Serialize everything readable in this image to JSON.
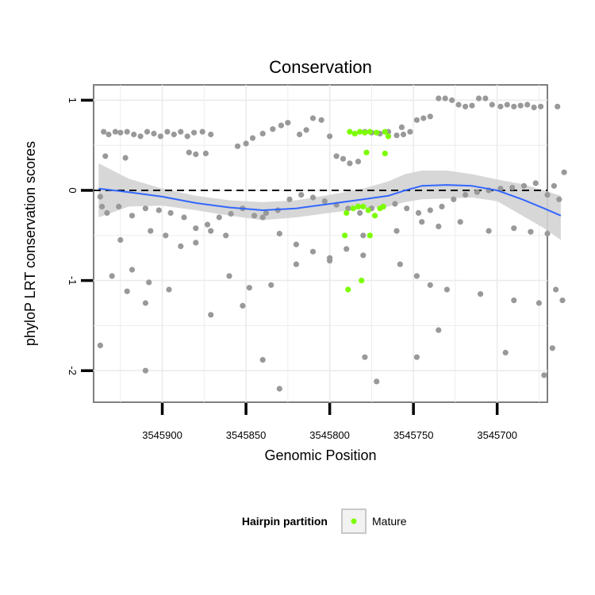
{
  "chart_data": {
    "type": "scatter",
    "title": "Conservation",
    "xlabel": "Genomic Position",
    "ylabel": "phyloP LRT conservation scores",
    "x_axis_reversed": true,
    "xlim": [
      3545941,
      3545670
    ],
    "ylim": [
      -2.35,
      1.17
    ],
    "x_ticks": [
      3545900,
      3545850,
      3545800,
      3545750,
      3545700
    ],
    "x_tick_labels": [
      "3545900",
      "3545850",
      "3545800",
      "3545750",
      "3545700"
    ],
    "y_ticks": [
      1,
      0,
      -1,
      -2
    ],
    "y_tick_labels": [
      "1",
      "0",
      "-1",
      "-2"
    ],
    "grid": true,
    "reference_line": {
      "y": 0,
      "style": "dashed"
    },
    "legend": {
      "title": "Hairpin partition",
      "entries": [
        "Mature"
      ],
      "placement": "bottom"
    },
    "colors": {
      "other": "#999999",
      "mature": "#7cfc00",
      "smooth": "#3366ff",
      "ribbon": "#d3d3d3"
    },
    "series": [
      {
        "group": "other",
        "points": [
          [
            3545935,
            0.65
          ],
          [
            3545932,
            0.62
          ],
          [
            3545928,
            0.65
          ],
          [
            3545925,
            0.64
          ],
          [
            3545921,
            0.65
          ],
          [
            3545917,
            0.62
          ],
          [
            3545913,
            0.6
          ],
          [
            3545909,
            0.65
          ],
          [
            3545905,
            0.63
          ],
          [
            3545901,
            0.6
          ],
          [
            3545897,
            0.65
          ],
          [
            3545893,
            0.62
          ],
          [
            3545889,
            0.65
          ],
          [
            3545885,
            0.6
          ],
          [
            3545881,
            0.64
          ],
          [
            3545876,
            0.65
          ],
          [
            3545871,
            0.62
          ],
          [
            3545934,
            0.38
          ],
          [
            3545922,
            0.36
          ],
          [
            3545884,
            0.42
          ],
          [
            3545880,
            0.4
          ],
          [
            3545874,
            0.41
          ],
          [
            3545855,
            0.49
          ],
          [
            3545850,
            0.52
          ],
          [
            3545846,
            0.58
          ],
          [
            3545840,
            0.63
          ],
          [
            3545834,
            0.68
          ],
          [
            3545829,
            0.72
          ],
          [
            3545825,
            0.75
          ],
          [
            3545818,
            0.62
          ],
          [
            3545814,
            0.67
          ],
          [
            3545810,
            0.8
          ],
          [
            3545805,
            0.78
          ],
          [
            3545800,
            0.6
          ],
          [
            3545796,
            0.38
          ],
          [
            3545792,
            0.35
          ],
          [
            3545788,
            0.3
          ],
          [
            3545783,
            0.32
          ],
          [
            3545779,
            0.65
          ],
          [
            3545775,
            0.64
          ],
          [
            3545770,
            0.63
          ],
          [
            3545765,
            0.65
          ],
          [
            3545760,
            0.61
          ],
          [
            3545756,
            0.62
          ],
          [
            3545752,
            0.65
          ],
          [
            3545757,
            0.7
          ],
          [
            3545748,
            0.78
          ],
          [
            3545744,
            0.8
          ],
          [
            3545740,
            0.82
          ],
          [
            3545735,
            1.02
          ],
          [
            3545731,
            1.02
          ],
          [
            3545727,
            1.0
          ],
          [
            3545723,
            0.95
          ],
          [
            3545719,
            0.93
          ],
          [
            3545715,
            0.94
          ],
          [
            3545711,
            1.02
          ],
          [
            3545707,
            1.02
          ],
          [
            3545703,
            0.95
          ],
          [
            3545698,
            0.93
          ],
          [
            3545694,
            0.95
          ],
          [
            3545690,
            0.93
          ],
          [
            3545686,
            0.94
          ],
          [
            3545682,
            0.95
          ],
          [
            3545678,
            0.92
          ],
          [
            3545674,
            0.93
          ],
          [
            3545664,
            0.93
          ],
          [
            3545660,
            0.2
          ],
          [
            3545666,
            0.05
          ],
          [
            3545937,
            -0.07
          ],
          [
            3545936,
            -0.18
          ],
          [
            3545933,
            -0.25
          ],
          [
            3545926,
            -0.18
          ],
          [
            3545918,
            -0.28
          ],
          [
            3545910,
            -0.2
          ],
          [
            3545902,
            -0.22
          ],
          [
            3545895,
            -0.25
          ],
          [
            3545887,
            -0.3
          ],
          [
            3545880,
            -0.42
          ],
          [
            3545873,
            -0.38
          ],
          [
            3545866,
            -0.3
          ],
          [
            3545859,
            -0.26
          ],
          [
            3545852,
            -0.2
          ],
          [
            3545845,
            -0.28
          ],
          [
            3545838,
            -0.25
          ],
          [
            3545831,
            -0.22
          ],
          [
            3545824,
            -0.1
          ],
          [
            3545817,
            -0.05
          ],
          [
            3545810,
            -0.08
          ],
          [
            3545803,
            -0.12
          ],
          [
            3545796,
            -0.16
          ],
          [
            3545789,
            -0.2
          ],
          [
            3545782,
            -0.25
          ],
          [
            3545775,
            -0.2
          ],
          [
            3545768,
            -0.18
          ],
          [
            3545761,
            -0.15
          ],
          [
            3545754,
            -0.2
          ],
          [
            3545747,
            -0.25
          ],
          [
            3545740,
            -0.22
          ],
          [
            3545733,
            -0.18
          ],
          [
            3545726,
            -0.1
          ],
          [
            3545719,
            -0.05
          ],
          [
            3545712,
            -0.02
          ],
          [
            3545705,
            0.0
          ],
          [
            3545698,
            0.02
          ],
          [
            3545691,
            0.03
          ],
          [
            3545684,
            0.05
          ],
          [
            3545677,
            0.08
          ],
          [
            3545670,
            -0.05
          ],
          [
            3545663,
            -0.1
          ],
          [
            3545925,
            -0.55
          ],
          [
            3545907,
            -0.45
          ],
          [
            3545898,
            -0.5
          ],
          [
            3545889,
            -0.62
          ],
          [
            3545880,
            -0.58
          ],
          [
            3545871,
            -0.45
          ],
          [
            3545862,
            -0.5
          ],
          [
            3545840,
            -0.3
          ],
          [
            3545830,
            -0.48
          ],
          [
            3545820,
            -0.6
          ],
          [
            3545810,
            -0.68
          ],
          [
            3545800,
            -0.75
          ],
          [
            3545790,
            -0.65
          ],
          [
            3545780,
            -0.5
          ],
          [
            3545760,
            -0.45
          ],
          [
            3545745,
            -0.35
          ],
          [
            3545735,
            -0.4
          ],
          [
            3545722,
            -0.35
          ],
          [
            3545705,
            -0.45
          ],
          [
            3545690,
            -0.42
          ],
          [
            3545680,
            -0.46
          ],
          [
            3545670,
            -0.48
          ],
          [
            3545930,
            -0.95
          ],
          [
            3545918,
            -0.88
          ],
          [
            3545908,
            -1.02
          ],
          [
            3545896,
            -1.1
          ],
          [
            3545860,
            -0.95
          ],
          [
            3545848,
            -1.08
          ],
          [
            3545835,
            -1.05
          ],
          [
            3545820,
            -0.82
          ],
          [
            3545800,
            -0.78
          ],
          [
            3545780,
            -0.72
          ],
          [
            3545758,
            -0.82
          ],
          [
            3545748,
            -0.95
          ],
          [
            3545740,
            -1.05
          ],
          [
            3545730,
            -1.1
          ],
          [
            3545710,
            -1.15
          ],
          [
            3545690,
            -1.22
          ],
          [
            3545675,
            -1.25
          ],
          [
            3545665,
            -1.1
          ],
          [
            3545661,
            -1.22
          ],
          [
            3545921,
            -1.12
          ],
          [
            3545910,
            -1.25
          ],
          [
            3545871,
            -1.38
          ],
          [
            3545852,
            -1.28
          ],
          [
            3545840,
            -1.88
          ],
          [
            3545830,
            -2.2
          ],
          [
            3545779,
            -1.85
          ],
          [
            3545772,
            -2.12
          ],
          [
            3545748,
            -1.85
          ],
          [
            3545735,
            -1.55
          ],
          [
            3545695,
            -1.8
          ],
          [
            3545672,
            -2.05
          ],
          [
            3545667,
            -1.75
          ],
          [
            3545937,
            -1.72
          ],
          [
            3545910,
            -2.0
          ]
        ]
      },
      {
        "group": "mature",
        "name": "Mature",
        "points": [
          [
            3545788,
            0.65
          ],
          [
            3545785,
            0.63
          ],
          [
            3545782,
            0.65
          ],
          [
            3545779,
            0.64
          ],
          [
            3545776,
            0.65
          ],
          [
            3545772,
            0.64
          ],
          [
            3545767,
            0.65
          ],
          [
            3545765,
            0.6
          ],
          [
            3545778,
            0.42
          ],
          [
            3545767,
            0.41
          ],
          [
            3545790,
            -0.25
          ],
          [
            3545786,
            -0.2
          ],
          [
            3545783,
            -0.18
          ],
          [
            3545780,
            -0.18
          ],
          [
            3545777,
            -0.22
          ],
          [
            3545773,
            -0.28
          ],
          [
            3545770,
            -0.2
          ],
          [
            3545768,
            -0.18
          ],
          [
            3545791,
            -0.5
          ],
          [
            3545776,
            -0.5
          ],
          [
            3545781,
            -1.0
          ],
          [
            3545789,
            -1.1
          ]
        ]
      }
    ],
    "smooth_curve": [
      [
        3545938,
        0.02
      ],
      [
        3545920,
        -0.02
      ],
      [
        3545900,
        -0.07
      ],
      [
        3545880,
        -0.14
      ],
      [
        3545860,
        -0.19
      ],
      [
        3545840,
        -0.22
      ],
      [
        3545820,
        -0.2
      ],
      [
        3545800,
        -0.15
      ],
      [
        3545780,
        -0.1
      ],
      [
        3545765,
        -0.06
      ],
      [
        3545755,
        0.0
      ],
      [
        3545745,
        0.05
      ],
      [
        3545730,
        0.06
      ],
      [
        3545715,
        0.05
      ],
      [
        3545700,
        0.0
      ],
      [
        3545685,
        -0.1
      ],
      [
        3545672,
        -0.2
      ],
      [
        3545662,
        -0.28
      ]
    ],
    "ribbon": [
      [
        3545938,
        0.3,
        -0.3
      ],
      [
        3545920,
        0.13,
        -0.18
      ],
      [
        3545900,
        0.02,
        -0.17
      ],
      [
        3545880,
        -0.06,
        -0.22
      ],
      [
        3545860,
        -0.11,
        -0.28
      ],
      [
        3545840,
        -0.13,
        -0.33
      ],
      [
        3545820,
        -0.11,
        -0.3
      ],
      [
        3545800,
        -0.05,
        -0.25
      ],
      [
        3545780,
        0.02,
        -0.2
      ],
      [
        3545765,
        0.1,
        -0.18
      ],
      [
        3545755,
        0.18,
        -0.13
      ],
      [
        3545745,
        0.22,
        -0.1
      ],
      [
        3545730,
        0.22,
        -0.09
      ],
      [
        3545715,
        0.18,
        -0.08
      ],
      [
        3545700,
        0.12,
        -0.12
      ],
      [
        3545685,
        0.07,
        -0.28
      ],
      [
        3545672,
        0.0,
        -0.42
      ],
      [
        3545662,
        -0.06,
        -0.55
      ]
    ]
  }
}
